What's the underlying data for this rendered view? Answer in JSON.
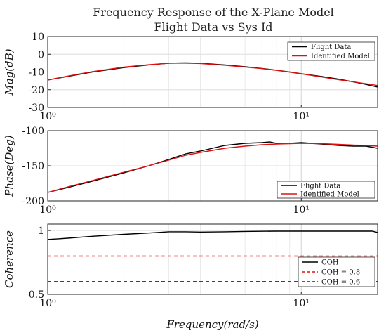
{
  "figure": {
    "title_line1": "Frequency Response of the X-Plane Model",
    "title_line2": "Flight Data vs Sys Id"
  },
  "chart_data": [
    {
      "type": "line",
      "ylabel": "Mag(dB)",
      "x_scale": "log",
      "xlim": [
        1,
        20
      ],
      "ylim": [
        -30,
        10
      ],
      "yticks": [
        -30,
        -20,
        -10,
        0,
        10
      ],
      "xtick_labels": [
        "10⁰",
        "10¹"
      ],
      "grid": true,
      "legend_position": "top-right",
      "series": [
        {
          "name": "Flight Data",
          "color": "#000000",
          "x": [
            1,
            1.2,
            1.5,
            2,
            2.5,
            3,
            3.5,
            4,
            5,
            6,
            7,
            8,
            9,
            10,
            12,
            14,
            16,
            18,
            20
          ],
          "y": [
            -14.5,
            -12.5,
            -10.0,
            -7.5,
            -6.0,
            -5.0,
            -4.8,
            -5.0,
            -6.0,
            -7.0,
            -8.0,
            -9.0,
            -10.0,
            -11.0,
            -12.5,
            -14.0,
            -15.5,
            -17.0,
            -18.5
          ]
        },
        {
          "name": "Identified Model",
          "color": "#e01010",
          "x": [
            1,
            1.2,
            1.5,
            2,
            2.5,
            3,
            3.5,
            4,
            5,
            6,
            7,
            8,
            9,
            10,
            12,
            14,
            16,
            18,
            20
          ],
          "y": [
            -14.5,
            -12.3,
            -9.8,
            -7.2,
            -5.9,
            -5.1,
            -5.0,
            -5.2,
            -6.2,
            -7.2,
            -8.1,
            -9.1,
            -10.0,
            -11.0,
            -12.8,
            -14.3,
            -15.5,
            -16.6,
            -17.6
          ]
        }
      ]
    },
    {
      "type": "line",
      "ylabel": "Phase(Deg)",
      "x_scale": "log",
      "xlim": [
        1,
        20
      ],
      "ylim": [
        -200,
        -100
      ],
      "yticks": [
        -200,
        -150,
        -100
      ],
      "xtick_labels": [
        "10⁰",
        "10¹"
      ],
      "grid": true,
      "legend_position": "bottom-right",
      "series": [
        {
          "name": "Flight Data",
          "color": "#000000",
          "x": [
            1,
            1.2,
            1.5,
            2,
            2.5,
            3,
            3.5,
            4,
            5,
            6,
            7,
            7.5,
            8,
            9,
            10,
            12,
            14,
            16,
            18,
            20
          ],
          "y": [
            -188,
            -181,
            -172,
            -160,
            -150,
            -141,
            -133,
            -129,
            -121,
            -118,
            -117,
            -116,
            -118,
            -118,
            -117,
            -119,
            -121,
            -122,
            -122,
            -125
          ]
        },
        {
          "name": "Identified Model",
          "color": "#e01010",
          "x": [
            1,
            1.2,
            1.5,
            2,
            2.5,
            3,
            3.5,
            4,
            5,
            6,
            7,
            8,
            9,
            10,
            12,
            14,
            16,
            18,
            20
          ],
          "y": [
            -188,
            -180,
            -171,
            -159,
            -150,
            -142,
            -135,
            -131,
            -125,
            -122,
            -120,
            -119,
            -118.5,
            -118,
            -118.5,
            -119.5,
            -120.5,
            -121,
            -122
          ]
        }
      ]
    },
    {
      "type": "line",
      "ylabel": "Coherence",
      "x_scale": "log",
      "xlim": [
        1,
        20
      ],
      "ylim": [
        0.5,
        1.05
      ],
      "yticks": [
        0.5,
        1
      ],
      "ytick_labels": [
        "0.5",
        "1"
      ],
      "xtick_labels": [
        "10⁰",
        "10¹"
      ],
      "xlabel": "Frequency(rad/s)",
      "grid": true,
      "legend_position": "bottom-right",
      "series": [
        {
          "name": "COH",
          "color": "#000000",
          "x": [
            1,
            1.1,
            1.2,
            1.5,
            2,
            2.5,
            3,
            3.5,
            4,
            5,
            6,
            8,
            10,
            12,
            15,
            19,
            20
          ],
          "y": [
            0.93,
            0.935,
            0.94,
            0.955,
            0.97,
            0.98,
            0.99,
            0.99,
            0.988,
            0.99,
            0.993,
            0.995,
            0.995,
            0.995,
            0.995,
            0.995,
            0.985
          ]
        },
        {
          "name": "COH = 0.8",
          "color": "#e01010",
          "dashed": true,
          "x": [
            1,
            20
          ],
          "y": [
            0.8,
            0.8
          ]
        },
        {
          "name": "COH = 0.6",
          "color": "#1010e0",
          "dashed": true,
          "x": [
            1,
            20
          ],
          "y": [
            0.6,
            0.6
          ]
        }
      ]
    }
  ]
}
